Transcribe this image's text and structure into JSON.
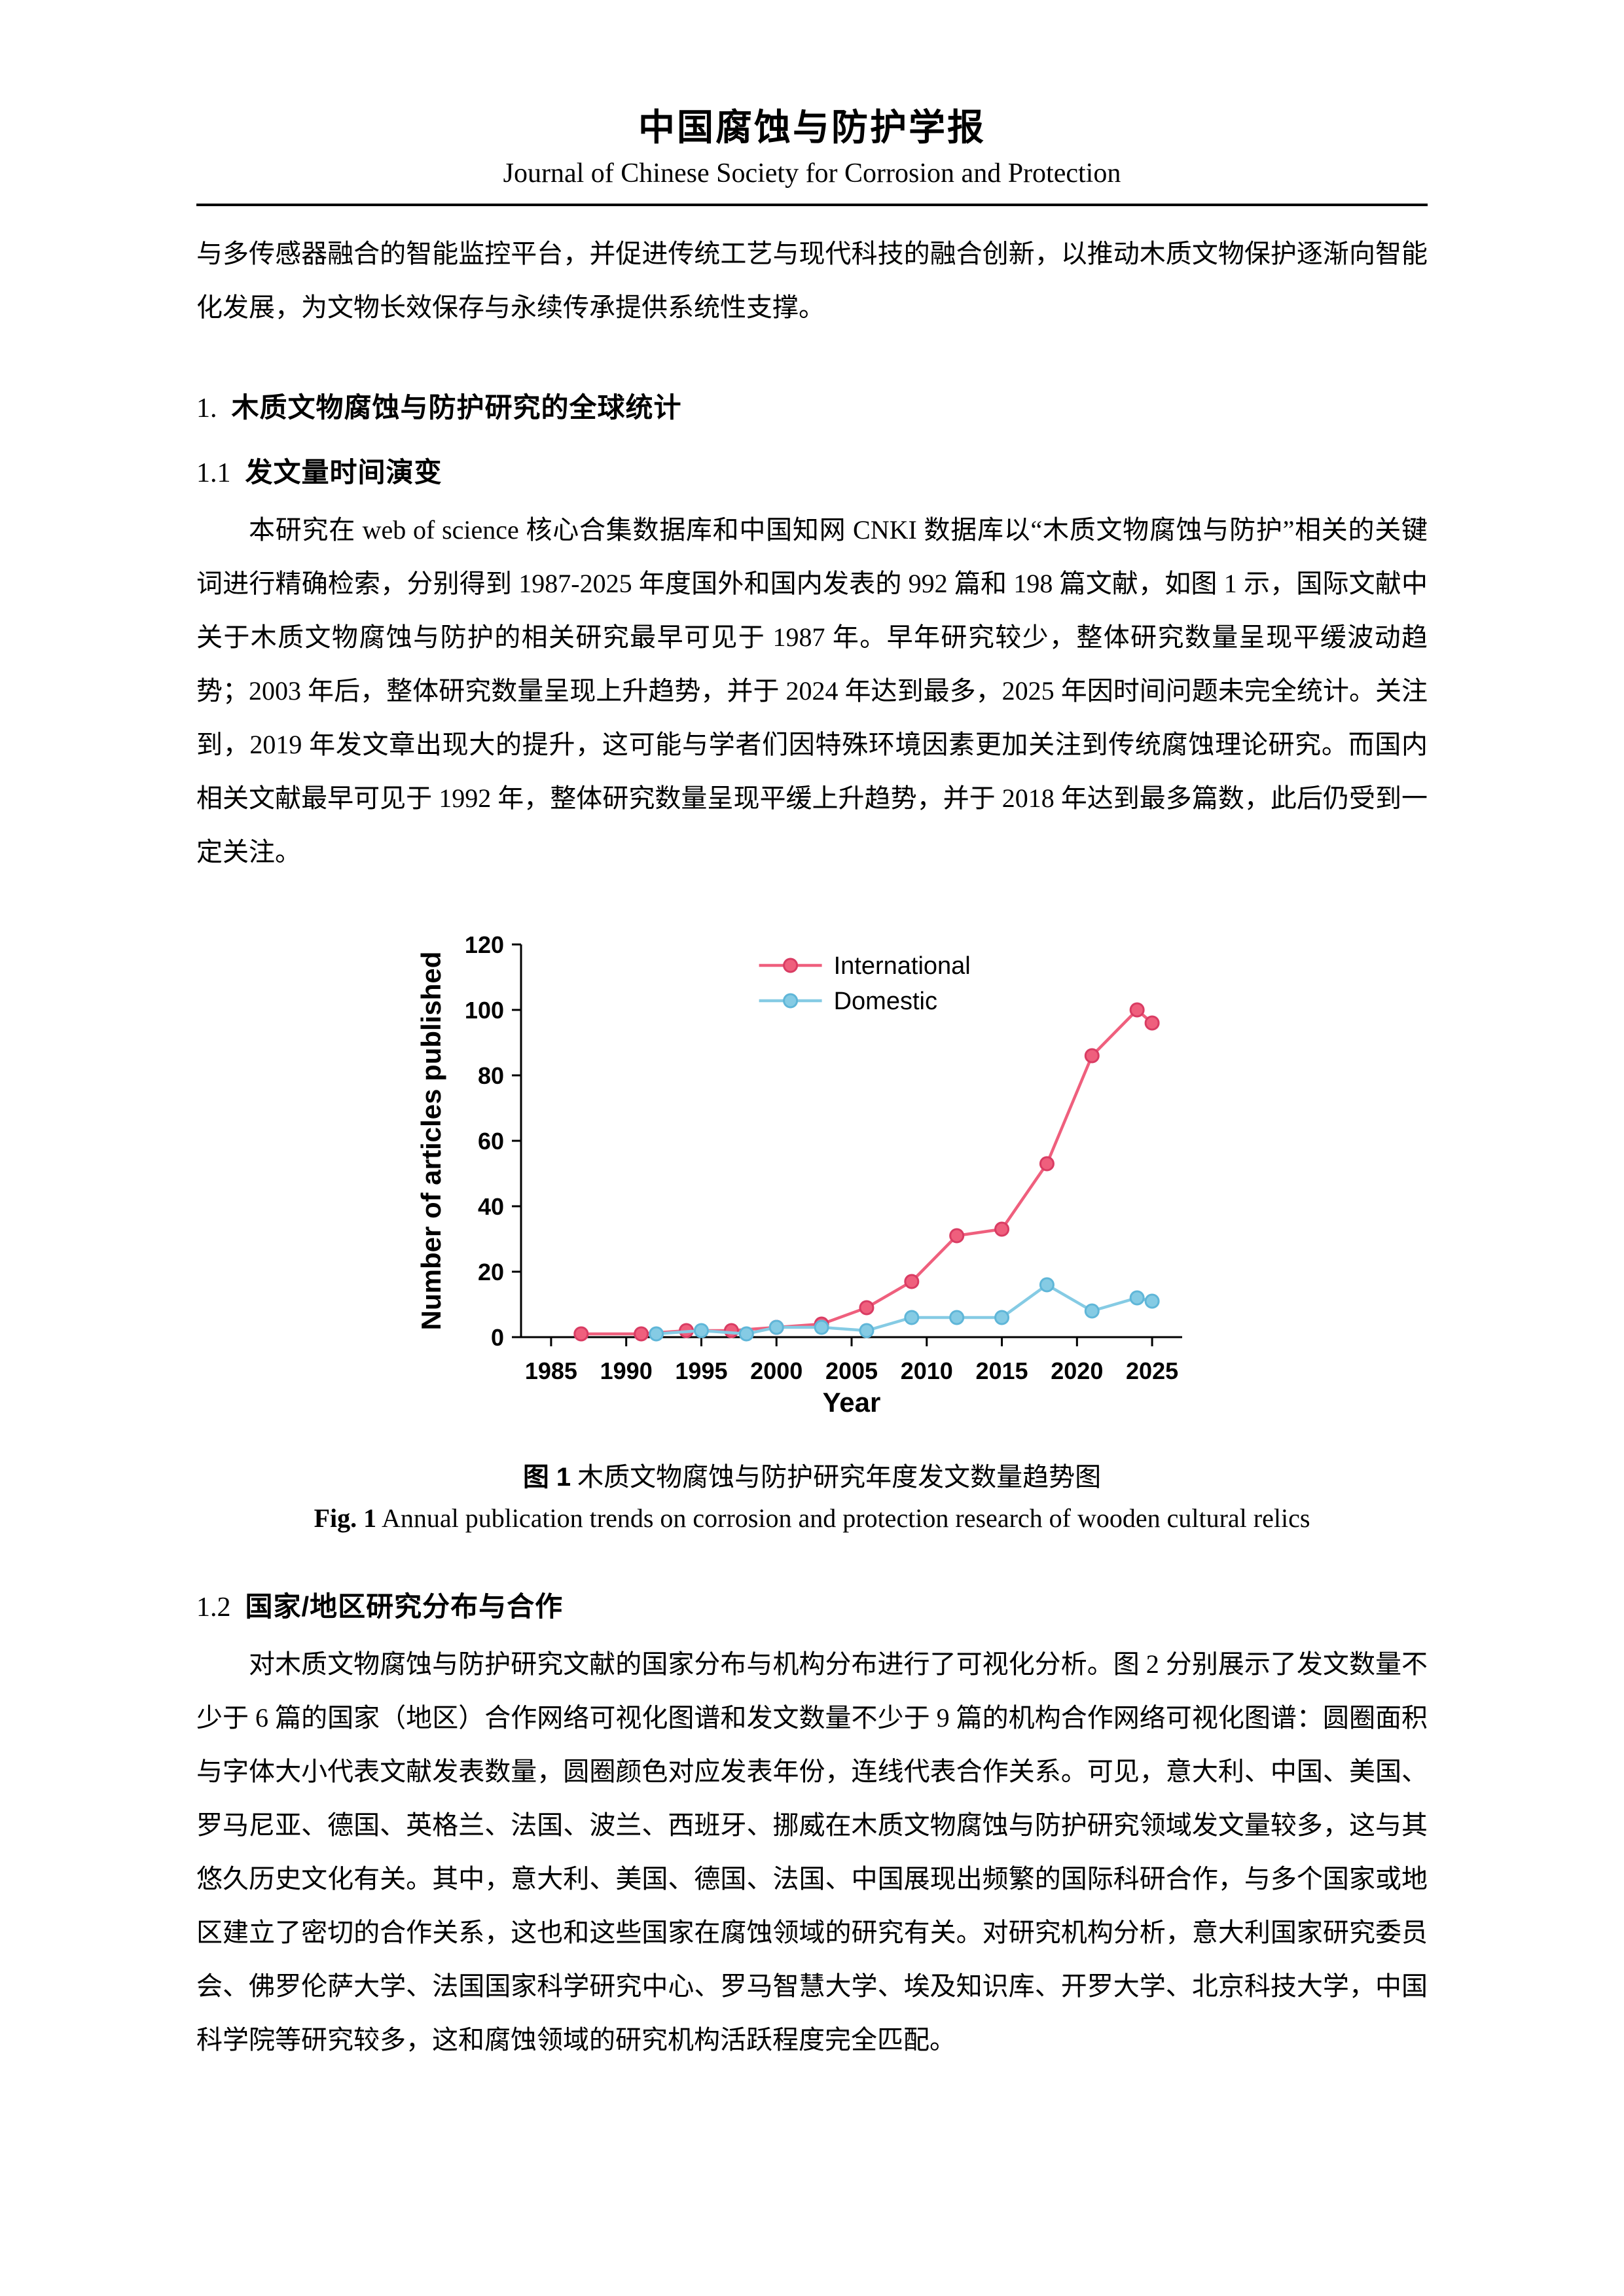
{
  "header": {
    "journal_cn": "中国腐蚀与防护学报",
    "journal_en": "Journal of Chinese Society for Corrosion and Protection"
  },
  "content": {
    "intro_paragraph": "与多传感器融合的智能监控平台，并促进传统工艺与现代科技的融合创新，以推动木质文物保护逐渐向智能化发展，为文物长效保存与永续传承提供系统性支撑。",
    "section1_heading_no": "1.",
    "section1_heading": "木质文物腐蚀与防护研究的全球统计",
    "sub11_no": "1.1",
    "sub11_heading": "发文量时间演变",
    "sub11_paragraph": "本研究在 web of science 核心合集数据库和中国知网 CNKI 数据库以“木质文物腐蚀与防护”相关的关键词进行精确检索，分别得到 1987-2025 年度国外和国内发表的 992 篇和 198 篇文献，如图 1 示，国际文献中关于木质文物腐蚀与防护的相关研究最早可见于 1987 年。早年研究较少，整体研究数量呈现平缓波动趋势；2003 年后，整体研究数量呈现上升趋势，并于 2024 年达到最多，2025 年因时间问题未完全统计。关注到，2019 年发文章出现大的提升，这可能与学者们因特殊环境因素更加关注到传统腐蚀理论研究。而国内相关文献最早可见于 1992 年，整体研究数量呈现平缓上升趋势，并于 2018 年达到最多篇数，此后仍受到一定关注。",
    "figure1": {
      "caption_cn_label": "图 1",
      "caption_cn_text": "木质文物腐蚀与防护研究年度发文数量趋势图",
      "caption_en_label": "Fig. 1",
      "caption_en_text": "Annual publication trends on corrosion and protection research of wooden cultural relics"
    },
    "sub12_no": "1.2",
    "sub12_heading": "国家/地区研究分布与合作",
    "sub12_paragraph": "对木质文物腐蚀与防护研究文献的国家分布与机构分布进行了可视化分析。图 2 分别展示了发文数量不少于 6 篇的国家（地区）合作网络可视化图谱和发文数量不少于 9 篇的机构合作网络可视化图谱：圆圈面积与字体大小代表文献发表数量，圆圈颜色对应发表年份，连线代表合作关系。可见，意大利、中国、美国、罗马尼亚、德国、英格兰、法国、波兰、西班牙、挪威在木质文物腐蚀与防护研究领域发文量较多，这与其悠久历史文化有关。其中，意大利、美国、德国、法国、中国展现出频繁的国际科研合作，与多个国家或地区建立了密切的合作关系，这也和这些国家在腐蚀领域的研究有关。对研究机构分析，意大利国家研究委员会、佛罗伦萨大学、法国国家科学研究中心、罗马智慧大学、埃及知识库、开罗大学、北京科技大学，中国科学院等研究较多，这和腐蚀领域的研究机构活跃程度完全匹配。"
  },
  "chart_data": {
    "type": "line",
    "title": "",
    "xlabel": "Year",
    "ylabel": "Number of articles published",
    "xlim": [
      1983,
      2027
    ],
    "ylim": [
      0,
      120
    ],
    "x_ticks": [
      1985,
      1990,
      1995,
      2000,
      2005,
      2010,
      2015,
      2020,
      2025
    ],
    "y_ticks": [
      0,
      20,
      40,
      60,
      80,
      100,
      120
    ],
    "grid": false,
    "legend_position": "top-center-inside",
    "series": [
      {
        "name": "International",
        "color": "#ef5f7d",
        "marker_edge": "#d93c63",
        "points": [
          [
            1987,
            1
          ],
          [
            1991,
            1
          ],
          [
            1994,
            2
          ],
          [
            1997,
            2
          ],
          [
            2000,
            3
          ],
          [
            2003,
            4
          ],
          [
            2006,
            9
          ],
          [
            2009,
            17
          ],
          [
            2012,
            31
          ],
          [
            2015,
            33
          ],
          [
            2018,
            53
          ],
          [
            2021,
            86
          ],
          [
            2024,
            100
          ],
          [
            2025,
            96
          ]
        ]
      },
      {
        "name": "Domestic",
        "color": "#85cbe4",
        "marker_edge": "#5fb6d8",
        "points": [
          [
            1992,
            1
          ],
          [
            1995,
            2
          ],
          [
            1998,
            1
          ],
          [
            2000,
            3
          ],
          [
            2003,
            3
          ],
          [
            2006,
            2
          ],
          [
            2009,
            6
          ],
          [
            2012,
            6
          ],
          [
            2015,
            6
          ],
          [
            2018,
            16
          ],
          [
            2021,
            8
          ],
          [
            2024,
            12
          ],
          [
            2025,
            11
          ]
        ]
      }
    ]
  }
}
